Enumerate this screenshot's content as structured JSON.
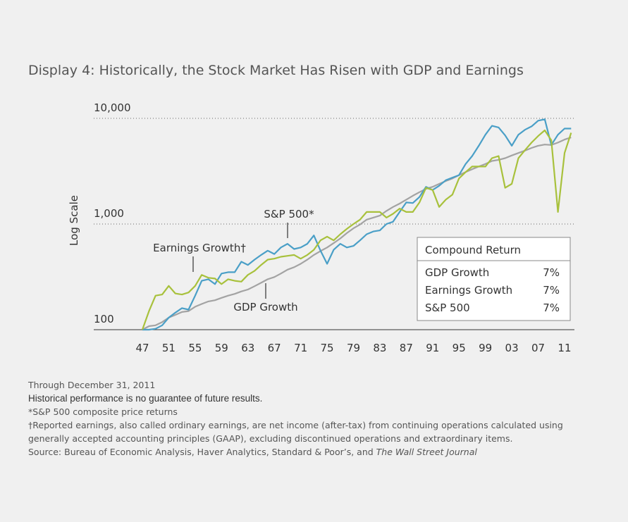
{
  "chart_data": {
    "type": "line",
    "title": "Display 4: Historically, the Stock Market Has Risen with GDP and Earnings",
    "y_label": "Log Scale",
    "log_scale": true,
    "grid": true,
    "x": [
      1947,
      1948,
      1949,
      1950,
      1951,
      1952,
      1953,
      1954,
      1955,
      1956,
      1957,
      1958,
      1959,
      1960,
      1961,
      1962,
      1963,
      1964,
      1965,
      1966,
      1967,
      1968,
      1969,
      1970,
      1971,
      1972,
      1973,
      1974,
      1975,
      1976,
      1977,
      1978,
      1979,
      1980,
      1981,
      1982,
      1983,
      1984,
      1985,
      1986,
      1987,
      1988,
      1989,
      1990,
      1991,
      1992,
      1993,
      1994,
      1995,
      1996,
      1997,
      1998,
      1999,
      2000,
      2001,
      2002,
      2003,
      2004,
      2005,
      2006,
      2007,
      2008,
      2009,
      2010,
      2011,
      2012
    ],
    "xlim": [
      1940,
      2012.5
    ],
    "xticks": [
      {
        "value": 1947,
        "label": "47"
      },
      {
        "value": 1951,
        "label": "51"
      },
      {
        "value": 1955,
        "label": "55"
      },
      {
        "value": 1959,
        "label": "59"
      },
      {
        "value": 1963,
        "label": "63"
      },
      {
        "value": 1967,
        "label": "67"
      },
      {
        "value": 1971,
        "label": "71"
      },
      {
        "value": 1975,
        "label": "75"
      },
      {
        "value": 1979,
        "label": "79"
      },
      {
        "value": 1983,
        "label": "83"
      },
      {
        "value": 1987,
        "label": "87"
      },
      {
        "value": 1991,
        "label": "91"
      },
      {
        "value": 1995,
        "label": "95"
      },
      {
        "value": 1999,
        "label": "99"
      },
      {
        "value": 2003,
        "label": "03"
      },
      {
        "value": 2007,
        "label": "07"
      },
      {
        "value": 2011,
        "label": "11"
      }
    ],
    "ylim": [
      100,
      10000
    ],
    "yticks": [
      100,
      {
        "value": 1000,
        "label": "1,000"
      },
      {
        "value": 10000,
        "label": "10,000"
      }
    ],
    "series": [
      {
        "name": "GDP Growth",
        "color": "#a3a3a3",
        "values": [
          100,
          108,
          110,
          118,
          130,
          138,
          147,
          150,
          165,
          175,
          185,
          190,
          200,
          210,
          218,
          230,
          240,
          258,
          278,
          300,
          315,
          340,
          370,
          390,
          420,
          460,
          510,
          555,
          600,
          660,
          730,
          820,
          910,
          990,
          1100,
          1150,
          1200,
          1330,
          1450,
          1560,
          1700,
          1850,
          2000,
          2150,
          2250,
          2400,
          2550,
          2700,
          2900,
          3100,
          3300,
          3500,
          3700,
          3950,
          4050,
          4200,
          4450,
          4700,
          4950,
          5250,
          5500,
          5650,
          5600,
          5900,
          6300,
          6600
        ]
      },
      {
        "name": "Earnings Growth",
        "color": "#a8c13c",
        "values": [
          100,
          150,
          210,
          215,
          260,
          220,
          215,
          225,
          260,
          330,
          310,
          305,
          270,
          300,
          290,
          285,
          330,
          360,
          410,
          460,
          470,
          490,
          500,
          510,
          470,
          510,
          570,
          700,
          760,
          700,
          800,
          900,
          1000,
          1100,
          1300,
          1300,
          1300,
          1150,
          1250,
          1400,
          1300,
          1300,
          1600,
          2200,
          2100,
          1450,
          1700,
          1900,
          2700,
          3100,
          3500,
          3500,
          3500,
          4200,
          4400,
          2200,
          2400,
          4200,
          5000,
          5900,
          6800,
          7700,
          6200,
          1300,
          4700,
          7300
        ]
      },
      {
        "name": "S&P 500",
        "color": "#4a9fc7",
        "values": [
          100,
          100,
          102,
          110,
          130,
          145,
          160,
          155,
          210,
          290,
          300,
          270,
          340,
          350,
          350,
          440,
          410,
          460,
          510,
          560,
          520,
          600,
          650,
          580,
          600,
          650,
          780,
          560,
          420,
          570,
          650,
          600,
          620,
          700,
          800,
          850,
          870,
          1000,
          1050,
          1300,
          1600,
          1580,
          1800,
          2250,
          2100,
          2300,
          2600,
          2750,
          2900,
          3700,
          4400,
          5500,
          7000,
          8500,
          8200,
          6900,
          5500,
          7000,
          7800,
          8400,
          9500,
          9800,
          5600,
          7000,
          8000,
          8000
        ]
      }
    ],
    "annotations": [
      {
        "text": "S&P 500*"
      },
      {
        "text": "Earnings Growth†"
      },
      {
        "text": "GDP Growth"
      }
    ],
    "table": {
      "title": "Compound Return",
      "rows": [
        [
          "GDP Growth",
          "7%"
        ],
        [
          "Earnings Growth",
          "7%"
        ],
        [
          "S&P 500",
          "7%"
        ]
      ]
    }
  },
  "notes": [
    "Through December 31, 2011",
    "Historical performance is no guarantee of future results.",
    "*S&P 500 composite price returns",
    "†Reported earnings, also called ordinary earnings, are net income (after-tax) from continuing operations calculated using generally accepted accounting principles (GAAP), excluding discontinued operations and extraordinary items."
  ],
  "source": {
    "text": "Source: Bureau of Economic Analysis, Haver Analytics, Standard & Poor’s, and ",
    "italic": "The Wall Street Journal"
  }
}
